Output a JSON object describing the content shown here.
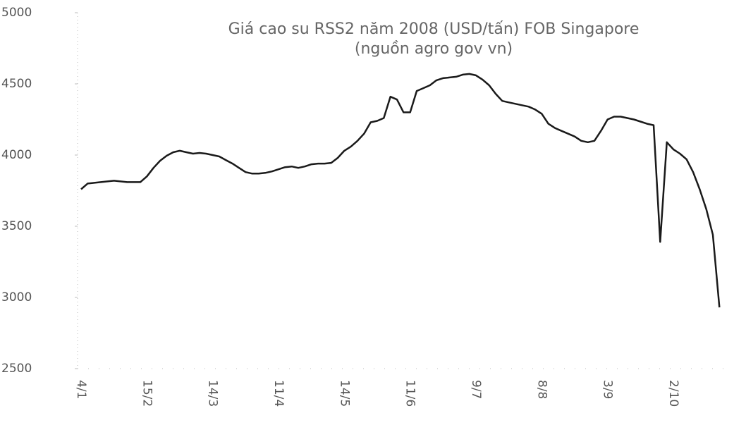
{
  "chart_data": {
    "type": "line",
    "title": "Giá cao su RSS2 năm 2008 (USD/tấn) FOB Singapore",
    "subtitle": "(nguồn agro gov vn)",
    "categories": [
      "4/1",
      null,
      null,
      null,
      null,
      null,
      null,
      null,
      null,
      null,
      "15/2",
      null,
      null,
      null,
      null,
      null,
      null,
      null,
      null,
      null,
      "14/3",
      null,
      null,
      null,
      null,
      null,
      null,
      null,
      null,
      null,
      "11/4",
      null,
      null,
      null,
      null,
      null,
      null,
      null,
      null,
      null,
      "14/5",
      null,
      null,
      null,
      null,
      null,
      null,
      null,
      null,
      null,
      "11/6",
      null,
      null,
      null,
      null,
      null,
      null,
      null,
      null,
      null,
      "9/7",
      null,
      null,
      null,
      null,
      null,
      null,
      null,
      null,
      null,
      "8/8",
      null,
      null,
      null,
      null,
      null,
      null,
      null,
      null,
      null,
      "3/9",
      null,
      null,
      null,
      null,
      null,
      null,
      null,
      null,
      null,
      "2/10",
      null,
      null,
      null,
      null,
      null,
      null,
      null
    ],
    "values": [
      3760,
      3800,
      3805,
      3810,
      3815,
      3820,
      3815,
      3810,
      3810,
      3810,
      3850,
      3910,
      3960,
      3995,
      4020,
      4030,
      4020,
      4010,
      4015,
      4010,
      4000,
      3990,
      3965,
      3940,
      3910,
      3880,
      3870,
      3870,
      3875,
      3885,
      3900,
      3915,
      3920,
      3910,
      3920,
      3935,
      3940,
      3940,
      3945,
      3980,
      4030,
      4060,
      4100,
      4150,
      4230,
      4240,
      4260,
      4410,
      4390,
      4300,
      4300,
      4450,
      4470,
      4490,
      4525,
      4540,
      4545,
      4550,
      4565,
      4570,
      4560,
      4530,
      4490,
      4430,
      4380,
      4370,
      4360,
      4350,
      4340,
      4320,
      4290,
      4220,
      4190,
      4170,
      4150,
      4130,
      4100,
      4090,
      4100,
      4170,
      4250,
      4270,
      4270,
      4260,
      4250,
      4235,
      4220,
      4210,
      3390,
      4090,
      4040,
      4010,
      3970,
      3880,
      3760,
      3620,
      3440,
      2930
    ],
    "color": "#1a1a1a",
    "ylim": [
      2500,
      5000
    ],
    "yticks": [
      2500,
      3000,
      3500,
      4000,
      4500,
      5000
    ],
    "grid": false
  }
}
